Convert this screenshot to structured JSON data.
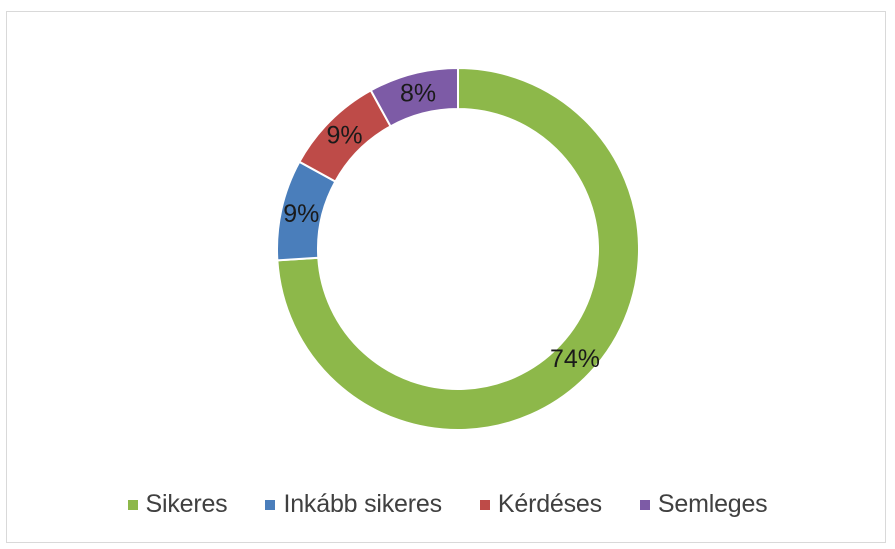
{
  "chart_data": {
    "type": "pie",
    "style": "donut",
    "categories": [
      "Sikeres",
      "Inkább sikeres",
      "Kérdéses",
      "Semleges"
    ],
    "values": [
      74,
      9,
      9,
      8
    ],
    "data_labels": [
      "74%",
      "9%",
      "9%",
      "8%"
    ],
    "colors": [
      "#8db84a",
      "#4a7ebb",
      "#be4b48",
      "#7d5ba6"
    ],
    "label_color": "#1a1a1a",
    "legend_position": "bottom",
    "start_angle_deg": 0,
    "direction": "clockwise"
  },
  "legend": {
    "items": [
      {
        "label": "Sikeres",
        "color": "#8db84a"
      },
      {
        "label": "Inkább sikeres",
        "color": "#4a7ebb"
      },
      {
        "label": "Kérdéses",
        "color": "#be4b48"
      },
      {
        "label": "Semleges",
        "color": "#7d5ba6"
      }
    ]
  }
}
